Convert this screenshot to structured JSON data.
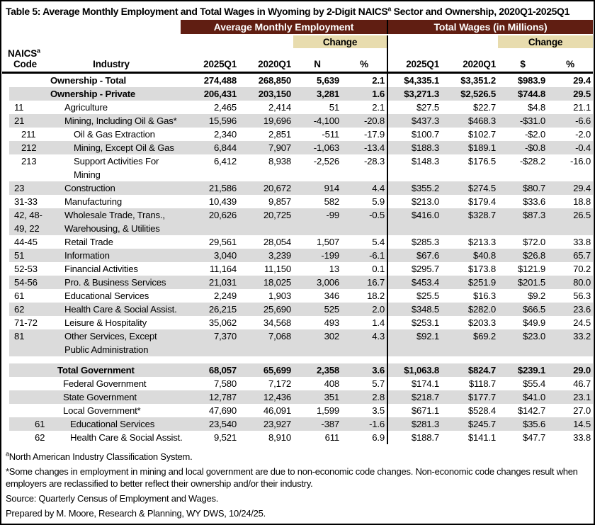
{
  "title": {
    "prefix": "Table 5: Average Monthly Employment and Total Wages in Wyoming by 2-Digit NAICS",
    "sup": "a",
    "suffix": " Sector and Ownership, 2020Q1-2025Q1"
  },
  "colors": {
    "group_header_bg": "#601E12",
    "group_header_text": "#FFFFFF",
    "change_header_bg": "#E8DCAE",
    "row_stripe": "#DBDBDB",
    "border": "#000000"
  },
  "header": {
    "group_employment": "Average Monthly Employment",
    "group_wages": "Total Wages (in Millions)",
    "change_employment": "Change",
    "change_wages": "Change",
    "naics_label": "NAICS",
    "naics_sup": "a",
    "code_label": "Code",
    "industry_label": "Industry",
    "emp_cols": [
      "2025Q1",
      "2020Q1",
      "N",
      "%"
    ],
    "wage_cols": [
      "2025Q1",
      "2020Q1",
      "$",
      "%"
    ]
  },
  "rows": [
    {
      "lvl": "own",
      "shade": false,
      "code": "",
      "industry": "Ownership - Total",
      "e1": "274,488",
      "e0": "268,850",
      "n": "5,639",
      "np": "2.1",
      "w1": "$4,335.1",
      "w0": "$3,351.2",
      "wd": "$983.9",
      "wp": "29.4"
    },
    {
      "lvl": "own",
      "shade": true,
      "code": "",
      "industry": "Ownership - Private",
      "e1": "206,431",
      "e0": "203,150",
      "n": "3,281",
      "np": "1.6",
      "w1": "$3,271.3",
      "w0": "$2,526.5",
      "wd": "$744.8",
      "wp": "29.5"
    },
    {
      "lvl": "sector",
      "shade": false,
      "code": "11",
      "industry": "Agriculture",
      "e1": "2,465",
      "e0": "2,414",
      "n": "51",
      "np": "2.1",
      "w1": "$27.5",
      "w0": "$22.7",
      "wd": "$4.8",
      "wp": "21.1"
    },
    {
      "lvl": "sector",
      "shade": true,
      "code": "21",
      "industry": "Mining, Including Oil & Gas*",
      "e1": "15,596",
      "e0": "19,696",
      "n": "-4,100",
      "np": "-20.8",
      "w1": "$437.3",
      "w0": "$468.3",
      "wd": "-$31.0",
      "wp": "-6.6"
    },
    {
      "lvl": "sub",
      "shade": false,
      "code": "211",
      "industry": "Oil & Gas Extraction",
      "e1": "2,340",
      "e0": "2,851",
      "n": "-511",
      "np": "-17.9",
      "w1": "$100.7",
      "w0": "$102.7",
      "wd": "-$2.0",
      "wp": "-2.0"
    },
    {
      "lvl": "sub",
      "shade": true,
      "code": "212",
      "industry": "Mining, Except Oil & Gas",
      "e1": "6,844",
      "e0": "7,907",
      "n": "-1,063",
      "np": "-13.4",
      "w1": "$188.3",
      "w0": "$189.1",
      "wd": "-$0.8",
      "wp": "-0.4"
    },
    {
      "lvl": "sub",
      "shade": false,
      "code": "213",
      "industry": "Support Activities For\nMining",
      "e1": "6,412",
      "e0": "8,938",
      "n": "-2,526",
      "np": "-28.3",
      "w1": "$148.3",
      "w0": "$176.5",
      "wd": "-$28.2",
      "wp": "-16.0"
    },
    {
      "lvl": "sector",
      "shade": true,
      "code": "23",
      "industry": "Construction",
      "e1": "21,586",
      "e0": "20,672",
      "n": "914",
      "np": "4.4",
      "w1": "$355.2",
      "w0": "$274.5",
      "wd": "$80.7",
      "wp": "29.4"
    },
    {
      "lvl": "sector",
      "shade": false,
      "code": "31-33",
      "industry": "Manufacturing",
      "e1": "10,439",
      "e0": "9,857",
      "n": "582",
      "np": "5.9",
      "w1": "$213.0",
      "w0": "$179.4",
      "wd": "$33.6",
      "wp": "18.8"
    },
    {
      "lvl": "sector",
      "shade": true,
      "code": "42, 48-\n49, 22",
      "industry": "Wholesale Trade, Trans.,\nWarehousing, & Utilities",
      "e1": "20,626",
      "e0": "20,725",
      "n": "-99",
      "np": "-0.5",
      "w1": "$416.0",
      "w0": "$328.7",
      "wd": "$87.3",
      "wp": "26.5"
    },
    {
      "lvl": "sector",
      "shade": false,
      "code": "44-45",
      "industry": "Retail Trade",
      "e1": "29,561",
      "e0": "28,054",
      "n": "1,507",
      "np": "5.4",
      "w1": "$285.3",
      "w0": "$213.3",
      "wd": "$72.0",
      "wp": "33.8"
    },
    {
      "lvl": "sector",
      "shade": true,
      "code": "51",
      "industry": "Information",
      "e1": "3,040",
      "e0": "3,239",
      "n": "-199",
      "np": "-6.1",
      "w1": "$67.6",
      "w0": "$40.8",
      "wd": "$26.8",
      "wp": "65.7"
    },
    {
      "lvl": "sector",
      "shade": false,
      "code": "52-53",
      "industry": "Financial Activities",
      "e1": "11,164",
      "e0": "11,150",
      "n": "13",
      "np": "0.1",
      "w1": "$295.7",
      "w0": "$173.8",
      "wd": "$121.9",
      "wp": "70.2"
    },
    {
      "lvl": "sector",
      "shade": true,
      "code": "54-56",
      "industry": "Pro. & Business Services",
      "e1": "21,031",
      "e0": "18,025",
      "n": "3,006",
      "np": "16.7",
      "w1": "$453.4",
      "w0": "$251.9",
      "wd": "$201.5",
      "wp": "80.0"
    },
    {
      "lvl": "sector",
      "shade": false,
      "code": "61",
      "industry": "Educational Services",
      "e1": "2,249",
      "e0": "1,903",
      "n": "346",
      "np": "18.2",
      "w1": "$25.5",
      "w0": "$16.3",
      "wd": "$9.2",
      "wp": "56.3"
    },
    {
      "lvl": "sector",
      "shade": true,
      "code": "62",
      "industry": "Health Care & Social Assist.",
      "e1": "26,215",
      "e0": "25,690",
      "n": "525",
      "np": "2.0",
      "w1": "$348.5",
      "w0": "$282.0",
      "wd": "$66.5",
      "wp": "23.6"
    },
    {
      "lvl": "sector",
      "shade": false,
      "code": "71-72",
      "industry": "Leisure & Hospitality",
      "e1": "35,062",
      "e0": "34,568",
      "n": "493",
      "np": "1.4",
      "w1": "$253.1",
      "w0": "$203.3",
      "wd": "$49.9",
      "wp": "24.5"
    },
    {
      "lvl": "sector",
      "shade": true,
      "code": "81",
      "industry": "Other Services, Except\nPublic Administration",
      "e1": "7,370",
      "e0": "7,068",
      "n": "302",
      "np": "4.3",
      "w1": "$92.1",
      "w0": "$69.2",
      "wd": "$23.0",
      "wp": "33.2"
    },
    {
      "blank": true
    },
    {
      "lvl": "govtotal",
      "shade": true,
      "code": "",
      "industry": "Total Government",
      "e1": "68,057",
      "e0": "65,699",
      "n": "2,358",
      "np": "3.6",
      "w1": "$1,063.8",
      "w0": "$824.7",
      "wd": "$239.1",
      "wp": "29.0"
    },
    {
      "lvl": "gov",
      "shade": false,
      "code": "",
      "industry": "Federal Government",
      "e1": "7,580",
      "e0": "7,172",
      "n": "408",
      "np": "5.7",
      "w1": "$174.1",
      "w0": "$118.7",
      "wd": "$55.4",
      "wp": "46.7"
    },
    {
      "lvl": "gov",
      "shade": true,
      "code": "",
      "industry": "State Government",
      "e1": "12,787",
      "e0": "12,436",
      "n": "351",
      "np": "2.8",
      "w1": "$218.7",
      "w0": "$177.7",
      "wd": "$41.0",
      "wp": "23.1"
    },
    {
      "lvl": "gov",
      "shade": false,
      "code": "",
      "industry": "Local Government*",
      "e1": "47,690",
      "e0": "46,091",
      "n": "1,599",
      "np": "3.5",
      "w1": "$671.1",
      "w0": "$528.4",
      "wd": "$142.7",
      "wp": "27.0"
    },
    {
      "lvl": "govsub",
      "shade": true,
      "code": "61",
      "industry": "Educational Services",
      "e1": "23,540",
      "e0": "23,927",
      "n": "-387",
      "np": "-1.6",
      "w1": "$281.3",
      "w0": "$245.7",
      "wd": "$35.6",
      "wp": "14.5"
    },
    {
      "lvl": "govsub",
      "shade": false,
      "code": "62",
      "industry": "Health Care & Social Assist.",
      "e1": "9,521",
      "e0": "8,910",
      "n": "611",
      "np": "6.9",
      "w1": "$188.7",
      "w0": "$141.1",
      "wd": "$47.7",
      "wp": "33.8"
    }
  ],
  "footnotes": {
    "f1_sup": "a",
    "f1_text": "North American Industry Classification System.",
    "f2": "*Some changes in employment in mining and local government are due to non-economic code changes. Non-economic code changes result when employers are reclassified to better reflect their ownership and/or their industry.",
    "f3": "Source: Quarterly Census of Employment and Wages.",
    "f4": "Prepared by M. Moore, Research & Planning, WY DWS, 10/24/25."
  }
}
